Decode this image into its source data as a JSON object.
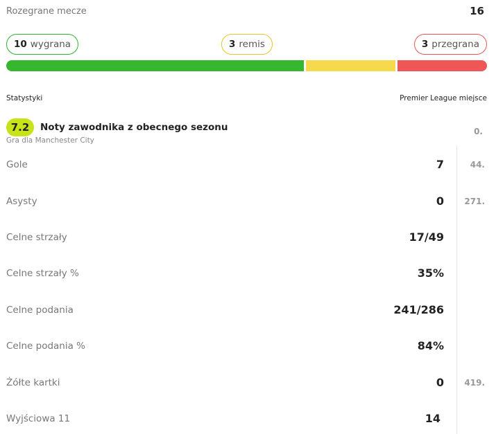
{
  "matches": {
    "label": "Rozegrane mecze",
    "value": "16"
  },
  "results": {
    "wins": {
      "count": "10",
      "label": "wygrana"
    },
    "draws": {
      "count": "3",
      "label": "remis"
    },
    "losses": {
      "count": "3",
      "label": "przegrana"
    },
    "colors": {
      "win": "#37b72f",
      "draw": "#f6d94c",
      "loss": "#ef5656"
    },
    "proportions": {
      "win": 10,
      "draw": 3,
      "loss": 3
    }
  },
  "header": {
    "left": "Statystyki",
    "right": "Premier League miejsce"
  },
  "rating": {
    "value": "7.2",
    "title": "Noty zawodnika z obecnego sezonu",
    "subtitle": "Gra dla Manchester City",
    "rank": "0."
  },
  "stats": [
    {
      "name": "Gole",
      "value": "7",
      "rank": "44."
    },
    {
      "name": "Asysty",
      "value": "0",
      "rank": "271."
    },
    {
      "name": "Celne strzały",
      "value": "17/49",
      "rank": ""
    },
    {
      "name": "Celne strzały %",
      "value": "35%",
      "rank": ""
    },
    {
      "name": "Celne podania",
      "value": "241/286",
      "rank": ""
    },
    {
      "name": "Celne podania %",
      "value": "84%",
      "rank": ""
    },
    {
      "name": "Żółte kartki",
      "value": "0",
      "rank": "419."
    },
    {
      "name": "Wyjściowa 11",
      "value": "14",
      "rank": ""
    }
  ]
}
